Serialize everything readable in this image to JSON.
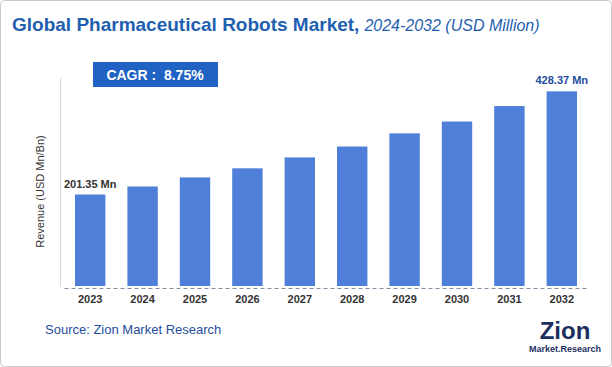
{
  "chart_data": {
    "type": "bar",
    "title": "Global Pharmaceutical Robots Market,",
    "subtitle": "2024-2032 (USD Million)",
    "y_label": "Revenue (USD Mn/Bn)",
    "categories": [
      "2023",
      "2024",
      "2025",
      "2026",
      "2027",
      "2028",
      "2029",
      "2030",
      "2031",
      "2032"
    ],
    "values": [
      201.35,
      219,
      239,
      259,
      283,
      307,
      336,
      362,
      396,
      428.37
    ],
    "value_labels": [
      "201.35 Mn",
      null,
      null,
      null,
      null,
      null,
      null,
      null,
      null,
      "428.37 Mn"
    ],
    "data_labels": true,
    "color": "#4f7fd8",
    "ylim": [
      0,
      460
    ],
    "tick_labels": "x",
    "grid": false,
    "annotations": [
      "CAGR :  8.75%",
      "Source: Zion Market Research",
      "Zion",
      "Market.Research"
    ]
  }
}
